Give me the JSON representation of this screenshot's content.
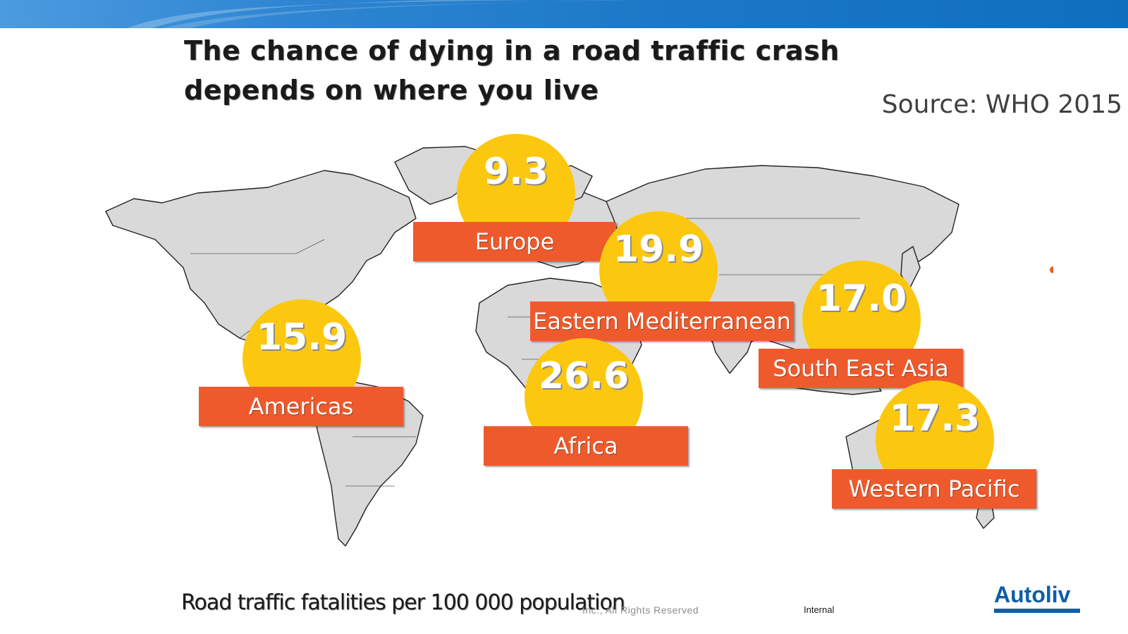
{
  "header": {
    "title_line1": "The chance of dying in a road traffic crash",
    "title_line2": "depends on where you live",
    "source": "Source: WHO 2015"
  },
  "colors": {
    "circle": "#fcc70f",
    "label_box": "#ef5a2d",
    "map_land": "#d9d9d9",
    "map_border": "#222222",
    "brand": "#0c5fa8"
  },
  "map": {
    "regions": [
      {
        "id": "europe",
        "name": "Europe",
        "value": "9.3"
      },
      {
        "id": "eastern-mediterranean",
        "name": "Eastern Mediterranean",
        "value": "19.9"
      },
      {
        "id": "americas",
        "name": "Americas",
        "value": "15.9"
      },
      {
        "id": "africa",
        "name": "Africa",
        "value": "26.6"
      },
      {
        "id": "south-east-asia",
        "name": "South East Asia",
        "value": "17.0"
      },
      {
        "id": "western-pacific",
        "name": "Western Pacific",
        "value": "17.3"
      }
    ]
  },
  "footer": {
    "caption": "Road traffic fatalities per 100 000 population",
    "copyright": "Inc., All Rights Reserved",
    "classification": "Internal",
    "logo": "Autoliv"
  }
}
